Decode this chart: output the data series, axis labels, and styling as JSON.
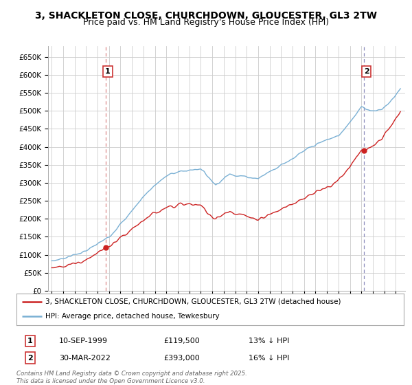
{
  "title": "3, SHACKLETON CLOSE, CHURCHDOWN, GLOUCESTER, GL3 2TW",
  "subtitle": "Price paid vs. HM Land Registry's House Price Index (HPI)",
  "ylim": [
    0,
    680000
  ],
  "yticks": [
    0,
    50000,
    100000,
    150000,
    200000,
    250000,
    300000,
    350000,
    400000,
    450000,
    500000,
    550000,
    600000,
    650000
  ],
  "ytick_labels": [
    "£0",
    "£50K",
    "£100K",
    "£150K",
    "£200K",
    "£250K",
    "£300K",
    "£350K",
    "£400K",
    "£450K",
    "£500K",
    "£550K",
    "£600K",
    "£650K"
  ],
  "hpi_color": "#7ab0d4",
  "price_color": "#cc2222",
  "vline_color1": "#cc6666",
  "vline_color2": "#8888cc",
  "sale1_year": 1999.69,
  "sale1_price": 119500,
  "sale2_year": 2022.24,
  "sale2_price": 393000,
  "legend_label_price": "3, SHACKLETON CLOSE, CHURCHDOWN, GLOUCESTER, GL3 2TW (detached house)",
  "legend_label_hpi": "HPI: Average price, detached house, Tewkesbury",
  "footer": "Contains HM Land Registry data © Crown copyright and database right 2025.\nThis data is licensed under the Open Government Licence v3.0.",
  "background_color": "#ffffff",
  "grid_color": "#cccccc"
}
